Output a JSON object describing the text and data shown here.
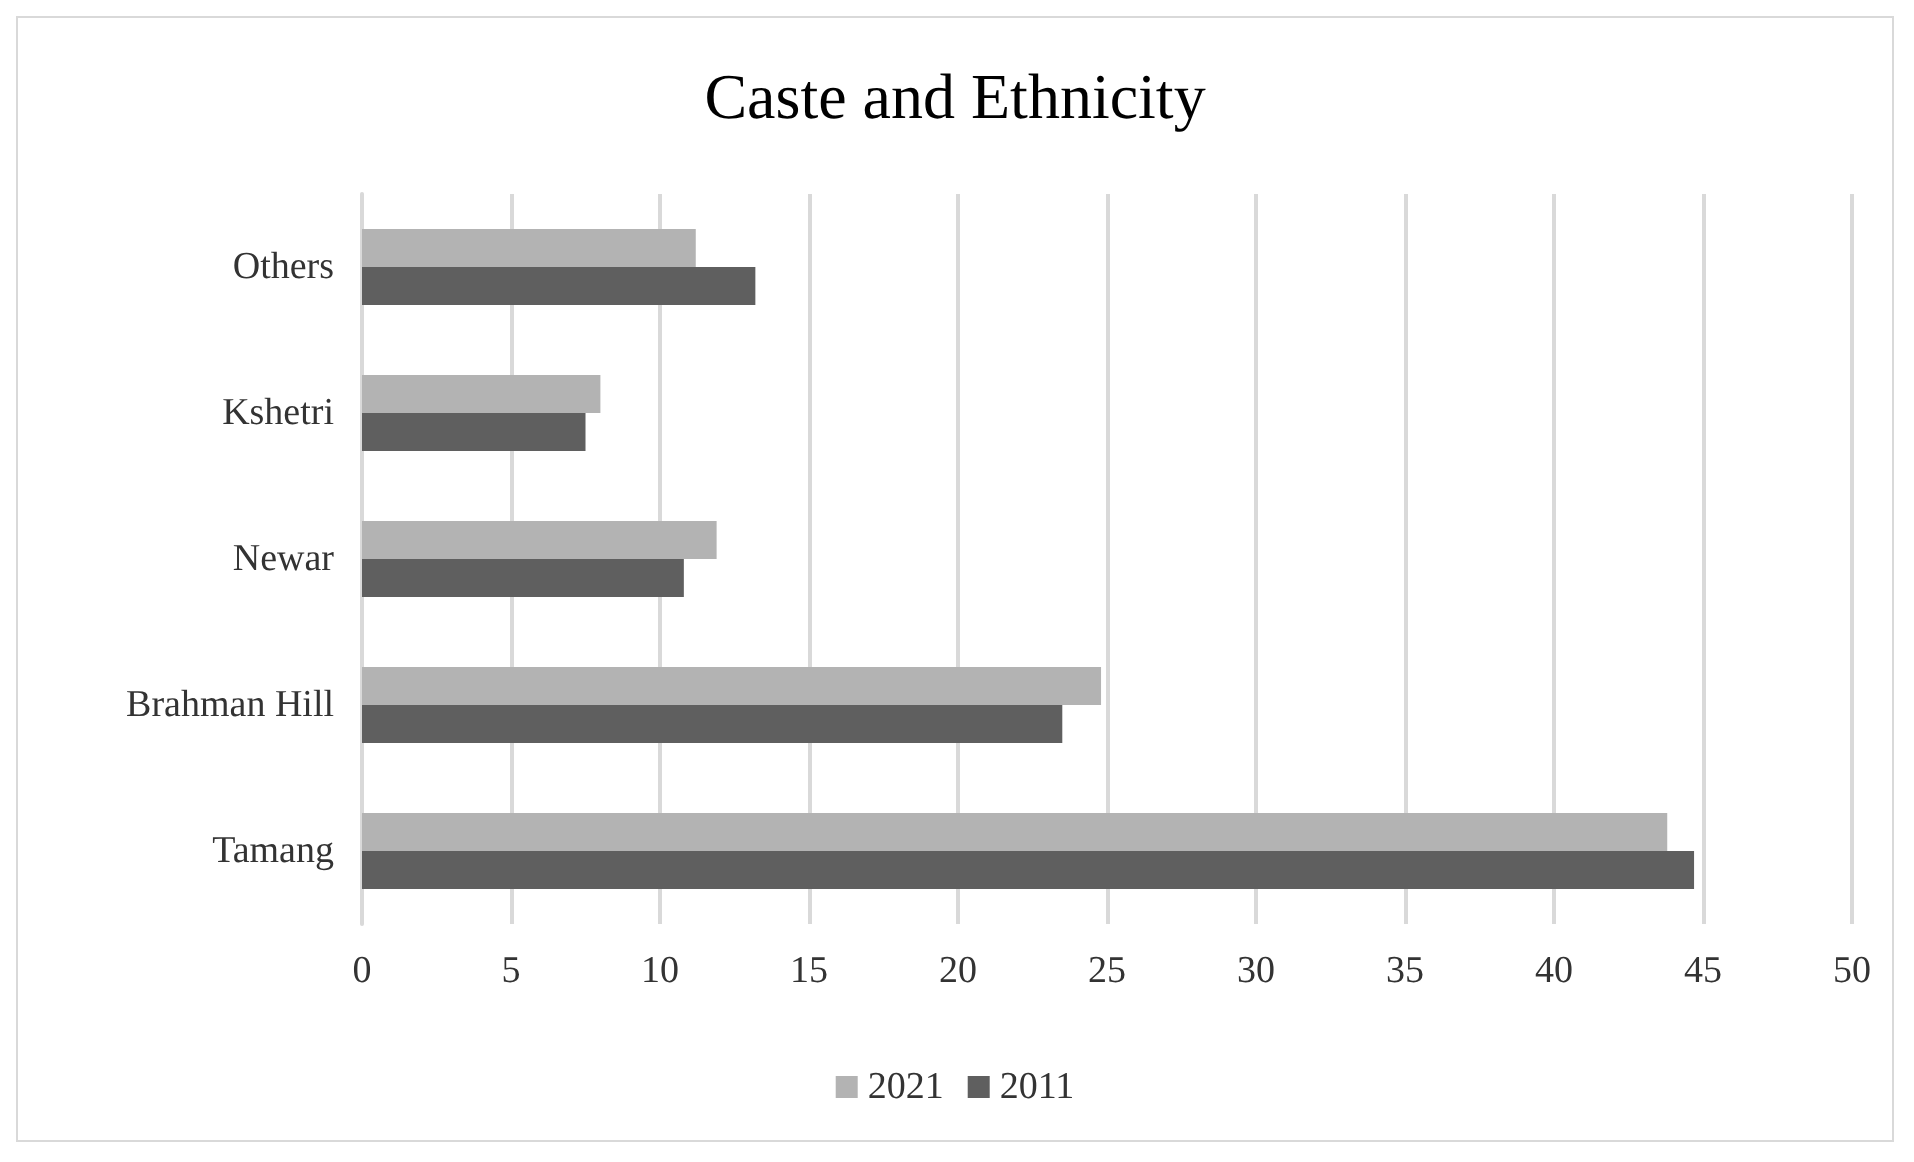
{
  "chart_data": {
    "type": "bar",
    "orientation": "horizontal",
    "title": "Caste and Ethnicity",
    "categories": [
      "Others",
      "Kshetri",
      "Newar",
      "Brahman Hill",
      "Tamang"
    ],
    "series": [
      {
        "name": "2021",
        "color": "#b3b3b3",
        "values": [
          11.2,
          8.0,
          11.9,
          24.8,
          43.8
        ]
      },
      {
        "name": "2011",
        "color": "#5f5f5f",
        "values": [
          13.2,
          7.5,
          10.8,
          23.5,
          44.7
        ]
      }
    ],
    "xlim": [
      0,
      50
    ],
    "xticks": [
      0,
      5,
      10,
      15,
      20,
      25,
      30,
      35,
      40,
      45,
      50
    ],
    "grid": "x",
    "legend": "bottom"
  }
}
